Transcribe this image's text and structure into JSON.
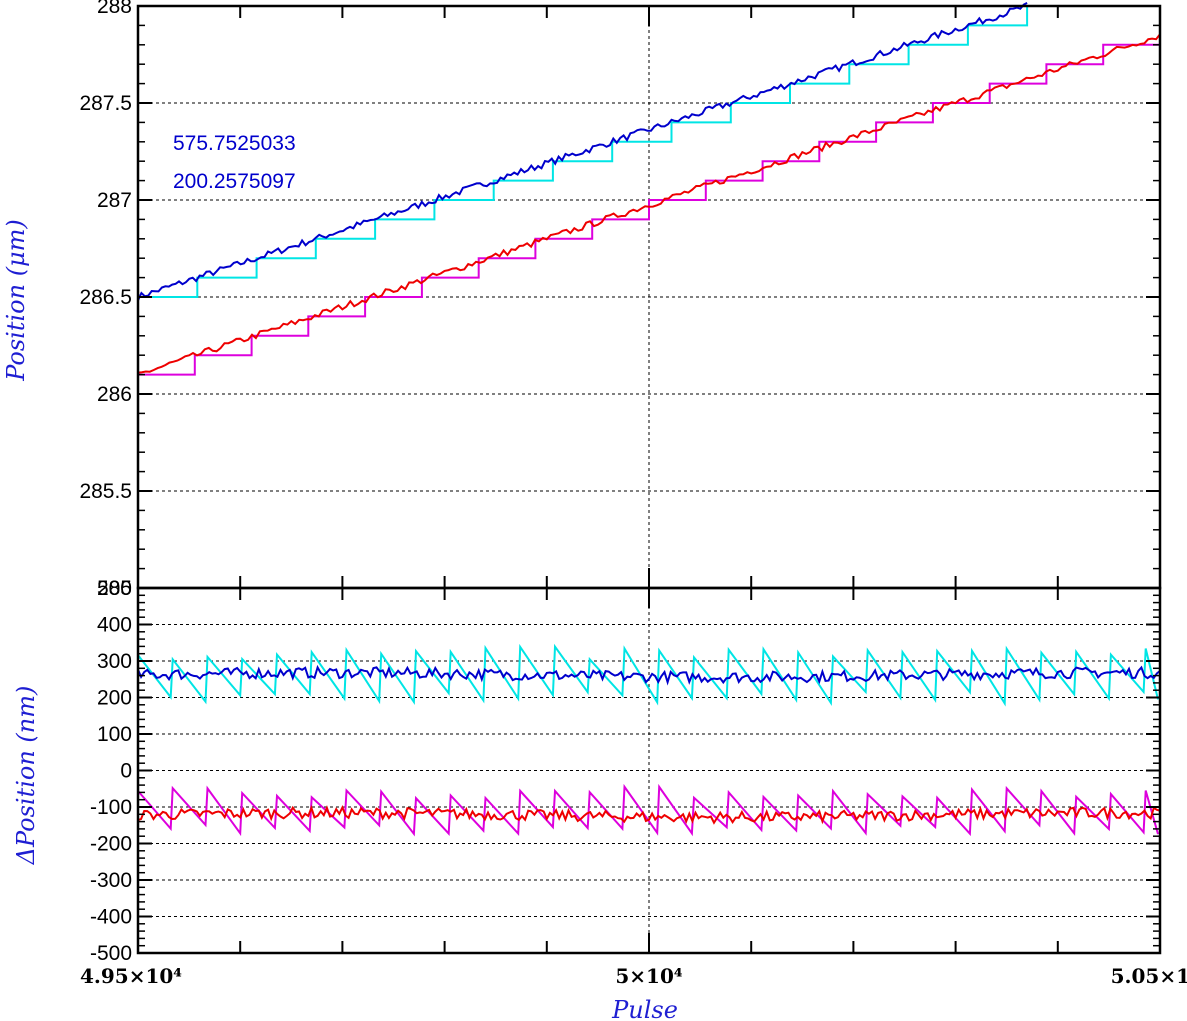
{
  "chart_data": [
    {
      "type": "line",
      "panel": "top",
      "ylabel": "Position (μm)",
      "xlim": [
        49500,
        50500
      ],
      "ylim": [
        285,
        288
      ],
      "yticks": [
        285,
        285.5,
        286,
        286.5,
        287,
        287.5,
        288
      ],
      "ytick_labels": [
        "285",
        "285.5",
        "286",
        "286.5",
        "287",
        "287.5",
        "288"
      ],
      "grid": true,
      "annotations": [
        "575.7525033",
        "200.2575097"
      ],
      "series": [
        {
          "color": "#00e5e5",
          "style": "step",
          "x": [
            49500,
            50370
          ],
          "y": [
            286.5,
            288.0
          ],
          "step": 0.1
        },
        {
          "color": "#0000cc",
          "style": "noisy",
          "x": [
            49500,
            50370
          ],
          "y": [
            286.5,
            288.0
          ]
        },
        {
          "color": "#dd00dd",
          "style": "step",
          "x": [
            49500,
            50500
          ],
          "y": [
            286.1,
            287.9
          ],
          "step": 0.1
        },
        {
          "color": "#ee0000",
          "style": "noisy",
          "x": [
            49500,
            50500
          ],
          "y": [
            286.1,
            287.85
          ]
        }
      ]
    },
    {
      "type": "line",
      "panel": "bottom",
      "ylabel": "ΔPosition (nm)",
      "xlabel": "Pulse",
      "xlim": [
        49500,
        50500
      ],
      "ylim": [
        -500,
        500
      ],
      "yticks": [
        -500,
        -400,
        -300,
        -200,
        -100,
        0,
        100,
        200,
        300,
        400,
        500
      ],
      "ytick_labels": [
        "-500",
        "-400",
        "-300",
        "-200",
        "-100",
        "0",
        "100",
        "200",
        "300",
        "400",
        "500"
      ],
      "xticks": [
        49500,
        50000,
        50500
      ],
      "xtick_labels": [
        "4.95×10⁴",
        "5×10⁴",
        "5.05×1"
      ],
      "grid": true,
      "series": [
        {
          "color": "#00e5e5",
          "style": "sawtooth",
          "center": 255,
          "amplitude": 65
        },
        {
          "color": "#0000cc",
          "style": "noisy",
          "center": 262,
          "amplitude": 15
        },
        {
          "color": "#dd00dd",
          "style": "sawtooth",
          "center": -115,
          "amplitude": 55
        },
        {
          "color": "#ee0000",
          "style": "noisy",
          "center": -122,
          "amplitude": 15
        }
      ]
    }
  ]
}
